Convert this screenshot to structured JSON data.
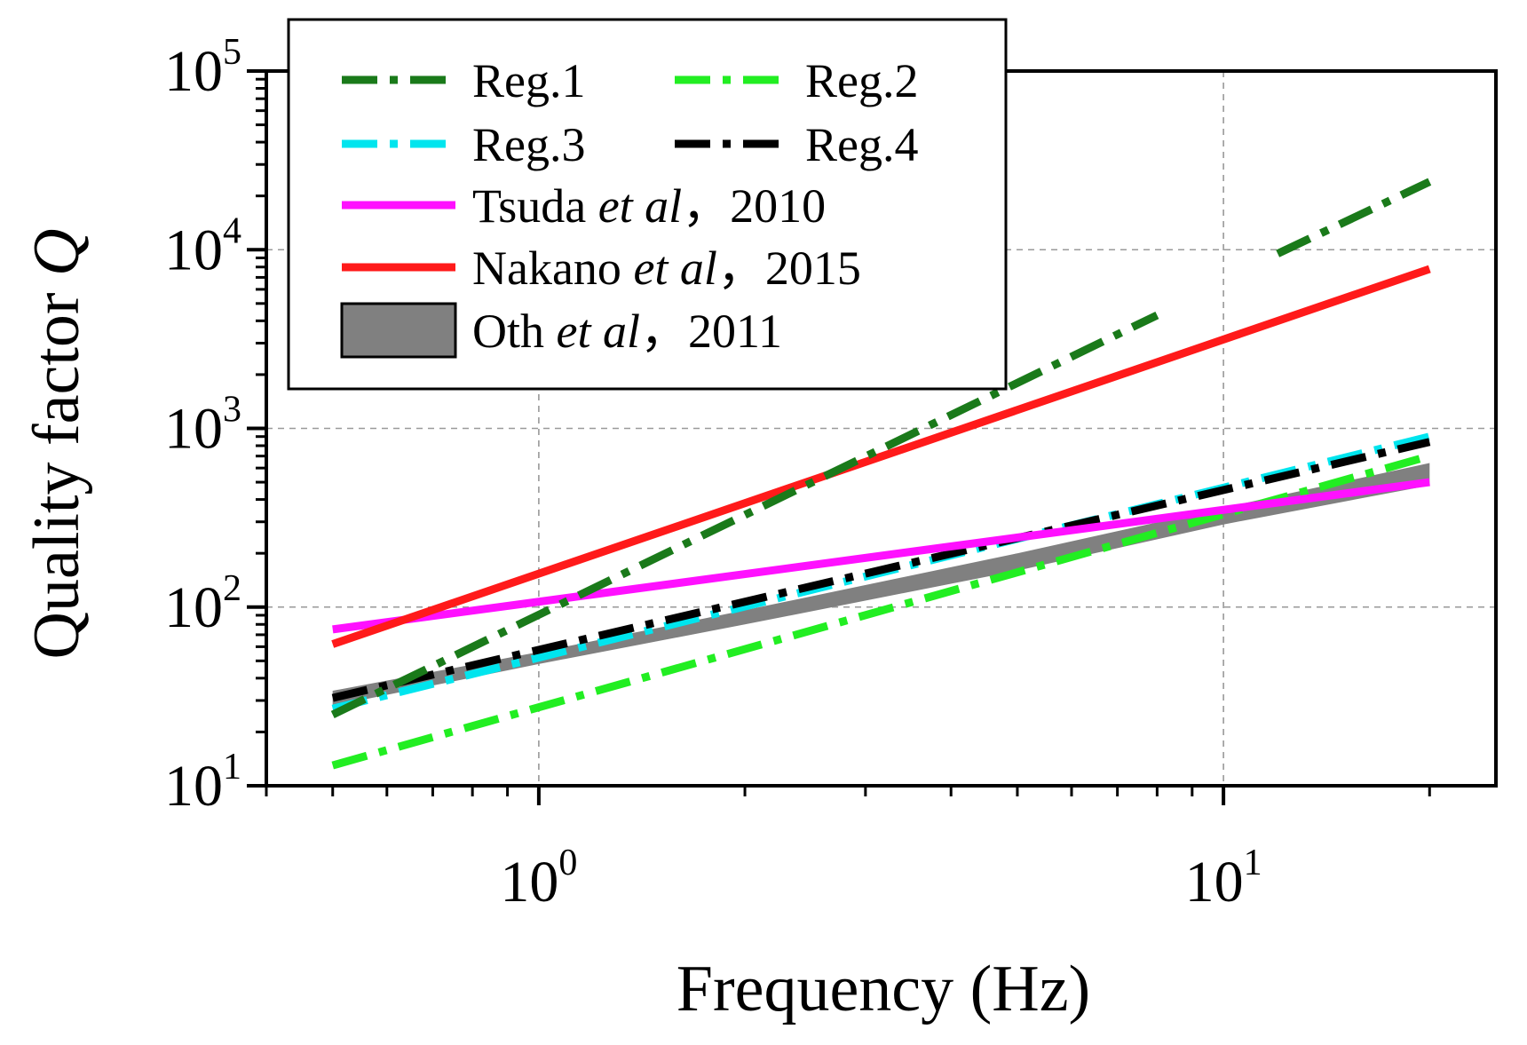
{
  "chart_data": {
    "type": "line",
    "title": "",
    "xlabel": "Frequency (Hz)",
    "ylabel": "Quality factor Q",
    "xscale": "log",
    "yscale": "log",
    "xlim": [
      0.4,
      25
    ],
    "ylim": [
      10,
      100000
    ],
    "grid": true,
    "legend_position": "top-left",
    "x_ticks": [
      {
        "value": 1,
        "base": "10",
        "exp": "0"
      },
      {
        "value": 10,
        "base": "10",
        "exp": "1"
      }
    ],
    "y_ticks": [
      {
        "value": 10,
        "base": "10",
        "exp": "1"
      },
      {
        "value": 100,
        "base": "10",
        "exp": "2"
      },
      {
        "value": 1000,
        "base": "10",
        "exp": "3"
      },
      {
        "value": 10000,
        "base": "10",
        "exp": "4"
      },
      {
        "value": 100000,
        "base": "10",
        "exp": "5"
      }
    ],
    "series": [
      {
        "name": "Reg.1",
        "style": "dashdot",
        "color": "#1a7a1a",
        "segments": [
          {
            "x": [
              0.5,
              8
            ],
            "y": [
              25,
              4300
            ]
          },
          {
            "x": [
              12,
              20
            ],
            "y": [
              9500,
              24000
            ]
          }
        ]
      },
      {
        "name": "Reg.2",
        "style": "dashdot",
        "color": "#22ee22",
        "segments": [
          {
            "x": [
              0.5,
              20
            ],
            "y": [
              13,
              700
            ]
          }
        ]
      },
      {
        "name": "Reg.3",
        "style": "dashdot",
        "color": "#00e5ee",
        "segments": [
          {
            "x": [
              0.5,
              20
            ],
            "y": [
              27,
              900
            ]
          }
        ]
      },
      {
        "name": "Reg.4",
        "style": "dashdot",
        "color": "#000000",
        "segments": [
          {
            "x": [
              0.5,
              20
            ],
            "y": [
              31,
              840
            ]
          }
        ]
      },
      {
        "name": "Tsuda et al, 2010",
        "name_parts": [
          "Tsuda ",
          "et al",
          "，2010"
        ],
        "style": "solid",
        "color": "#ff10ff",
        "segments": [
          {
            "x": [
              0.5,
              20
            ],
            "y": [
              75,
              500
            ]
          }
        ]
      },
      {
        "name": "Nakano et al, 2015",
        "name_parts": [
          "Nakano ",
          "et al",
          "，2015"
        ],
        "style": "solid",
        "color": "#ff1a1a",
        "segments": [
          {
            "x": [
              0.5,
              20
            ],
            "y": [
              62,
              7800
            ]
          }
        ]
      },
      {
        "name": "Oth et al, 2011",
        "name_parts": [
          "Oth ",
          "et al",
          "，2011"
        ],
        "style": "band",
        "color": "#808080",
        "band": {
          "x": [
            0.5,
            1,
            2,
            5,
            10,
            20
          ],
          "y_low": [
            28,
            48,
            80,
            160,
            290,
            480
          ],
          "y_high": [
            34,
            56,
            96,
            200,
            360,
            640
          ]
        }
      }
    ]
  }
}
